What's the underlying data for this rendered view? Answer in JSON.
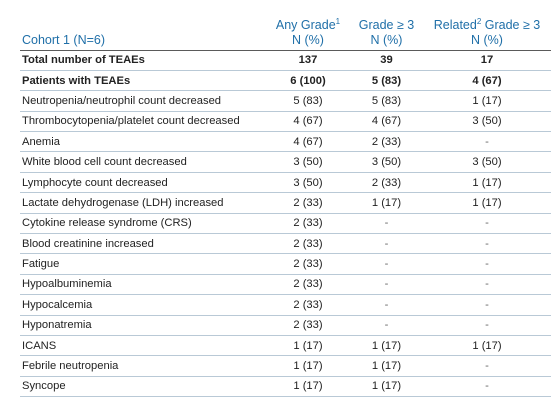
{
  "header": {
    "cohort": "Cohort 1 (N=6)",
    "col_any": "Any Grade",
    "col_any_sup": "1",
    "col_g3": "Grade ≥ 3",
    "col_rel": "Related",
    "col_rel_sup": "2",
    "col_rel_suffix": " Grade ≥ 3",
    "unit": "N (%)"
  },
  "rows": [
    {
      "label": "Total number of TEAEs",
      "any": "137",
      "g3": "39",
      "rel": "17",
      "bold": true
    },
    {
      "label": "Patients with TEAEs",
      "any": "6 (100)",
      "g3": "5 (83)",
      "rel": "4 (67)",
      "bold": true
    },
    {
      "label": "Neutropenia/neutrophil count decreased",
      "any": "5 (83)",
      "g3": "5 (83)",
      "rel": "1 (17)"
    },
    {
      "label": "Thrombocytopenia/platelet count decreased",
      "any": "4 (67)",
      "g3": "4 (67)",
      "rel": "3 (50)"
    },
    {
      "label": "Anemia",
      "any": "4 (67)",
      "g3": "2 (33)",
      "rel": "-"
    },
    {
      "label": "White blood cell count decreased",
      "any": "3 (50)",
      "g3": "3 (50)",
      "rel": "3 (50)"
    },
    {
      "label": "Lymphocyte count decreased",
      "any": "3 (50)",
      "g3": "2 (33)",
      "rel": "1 (17)"
    },
    {
      "label": "Lactate dehydrogenase (LDH) increased",
      "any": "2 (33)",
      "g3": "1 (17)",
      "rel": "1 (17)"
    },
    {
      "label": "Cytokine release syndrome (CRS)",
      "any": "2 (33)",
      "g3": "-",
      "rel": "-"
    },
    {
      "label": "Blood creatinine increased",
      "any": "2 (33)",
      "g3": "-",
      "rel": "-"
    },
    {
      "label": "Fatigue",
      "any": "2 (33)",
      "g3": "-",
      "rel": "-"
    },
    {
      "label": "Hypoalbuminemia",
      "any": "2 (33)",
      "g3": "-",
      "rel": "-"
    },
    {
      "label": "Hypocalcemia",
      "any": "2 (33)",
      "g3": "-",
      "rel": "-"
    },
    {
      "label": "Hyponatremia",
      "any": "2 (33)",
      "g3": "-",
      "rel": "-"
    },
    {
      "label": "ICANS",
      "any": "1 (17)",
      "g3": "1 (17)",
      "rel": "1 (17)"
    },
    {
      "label": "Febrile neutropenia",
      "any": "1 (17)",
      "g3": "1 (17)",
      "rel": "-"
    },
    {
      "label": "Syncope",
      "any": "1 (17)",
      "g3": "1 (17)",
      "rel": "-"
    }
  ]
}
